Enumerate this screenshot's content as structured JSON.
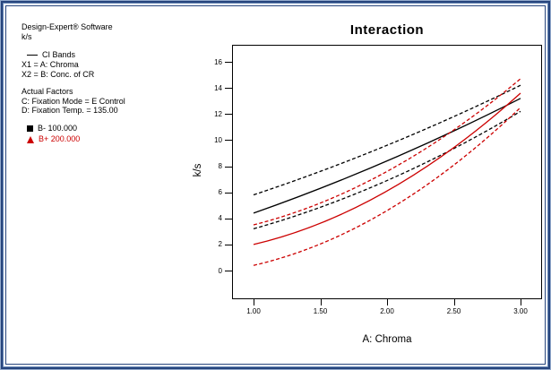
{
  "info_panel": {
    "app_title": "Design-Expert® Software",
    "response": "k/s",
    "ci_bands_label": "CI Bands",
    "x1": "X1 = A: Chroma",
    "x2": "X2 = B: Conc. of CR",
    "actual_factors_title": "Actual Factors",
    "factor_c": "C: Fixation Mode = E Control",
    "factor_d": "D: Fixation Temp. = 135.00",
    "b_minus_label": "B- 100.000",
    "b_plus_label": "B+ 200.000"
  },
  "colors": {
    "b_minus": "#000000",
    "b_plus": "#cc0000",
    "frame_navy": "#27457d"
  },
  "chart_data": {
    "type": "line",
    "title": "Interaction",
    "subtitle": "B: Conc. of CR",
    "xlabel": "A: Chroma",
    "ylabel": "k/s",
    "x": [
      1.0,
      2.0,
      3.0
    ],
    "x_ticks": [
      {
        "label": "1.00",
        "value": 1.0
      },
      {
        "label": "1.50",
        "value": 1.5
      },
      {
        "label": "2.00",
        "value": 2.0
      },
      {
        "label": "2.50",
        "value": 2.5
      },
      {
        "label": "3.00",
        "value": 3.0
      }
    ],
    "y_ticks": [
      0,
      2,
      4,
      6,
      8,
      10,
      12,
      14,
      16
    ],
    "xlim": [
      1.0,
      3.0
    ],
    "ylim": [
      -2.2,
      17.3
    ],
    "grid": false,
    "legend_position": "left",
    "series": [
      {
        "name": "B- 100.000 mean",
        "group": "B- 100.000",
        "values": [
          4.4,
          8.4,
          13.2
        ],
        "color": "#000000",
        "style": "solid"
      },
      {
        "name": "B- 100.000 CI upper",
        "group": "B- 100.000",
        "values": [
          5.8,
          9.6,
          14.2
        ],
        "color": "#000000",
        "style": "dashed"
      },
      {
        "name": "B- 100.000 CI lower",
        "group": "B- 100.000",
        "values": [
          3.2,
          6.9,
          12.2
        ],
        "color": "#000000",
        "style": "dashed"
      },
      {
        "name": "B+ 200.000 mean",
        "group": "B+ 200.000",
        "values": [
          2.0,
          6.1,
          13.6
        ],
        "color": "#cc0000",
        "style": "solid"
      },
      {
        "name": "B+ 200.000 CI upper",
        "group": "B+ 200.000",
        "values": [
          3.5,
          7.6,
          14.7
        ],
        "color": "#cc0000",
        "style": "dashed"
      },
      {
        "name": "B+ 200.000 CI lower",
        "group": "B+ 200.000",
        "values": [
          0.4,
          4.6,
          12.5
        ],
        "color": "#cc0000",
        "style": "dashed"
      }
    ]
  }
}
